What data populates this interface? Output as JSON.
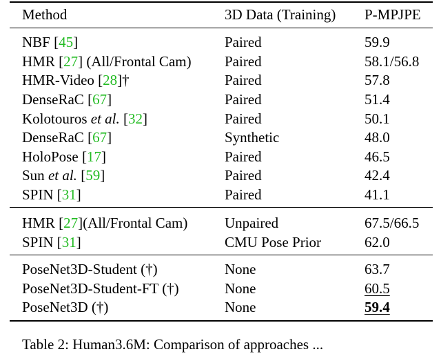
{
  "table": {
    "header": {
      "method": "Method",
      "data": "3D Data (Training)",
      "score": "P-MPJPE"
    },
    "rows": [
      {
        "method": "NBF",
        "cite": "45",
        "suffix": "",
        "data": "Paired",
        "score": "59.9"
      },
      {
        "method": "HMR",
        "cite": "27",
        "suffix": "(All/Frontal Cam)",
        "data": "Paired",
        "score": "58.1/56.8"
      },
      {
        "method": "HMR-Video",
        "cite": "28",
        "suffix": "†",
        "data": "Paired",
        "score": "57.8"
      },
      {
        "method": "DenseRaC",
        "cite": "67",
        "suffix": "",
        "data": "Paired",
        "score": "51.4"
      },
      {
        "method": "Kolotouros",
        "method_em": "et al.",
        "cite": "32",
        "suffix": "",
        "data": "Paired",
        "score": "50.1"
      },
      {
        "method": "DenseRaC",
        "cite": "67",
        "suffix": "",
        "data": "Synthetic",
        "score": "48.0"
      },
      {
        "method": "HoloPose",
        "cite": "17",
        "suffix": "",
        "data": "Paired",
        "score": "46.5"
      },
      {
        "method": "Sun",
        "method_em": "et al.",
        "cite": "59",
        "suffix": "",
        "data": "Paired",
        "score": "42.4"
      },
      {
        "method": "SPIN",
        "cite": "31",
        "suffix": "",
        "data": "Paired",
        "score": "41.1"
      },
      {
        "method": "HMR",
        "cite": "27",
        "suffix": "(All/Frontal Cam)",
        "data": "Unpaired",
        "score": "67.5/66.5"
      },
      {
        "method": "SPIN",
        "cite": "31",
        "suffix": "",
        "data": "CMU Pose Prior",
        "score": "62.0"
      },
      {
        "method": "PoseNet3D-Student (†)",
        "data": "None",
        "score": "63.7"
      },
      {
        "method": "PoseNet3D-Student-FT (†)",
        "data": "None",
        "score": "60.5"
      },
      {
        "method": "PoseNet3D (†)",
        "data": "None",
        "score": "59.4"
      }
    ]
  },
  "caption": {
    "text": "Table 2: Human3.6M: Comparison of approaches ..."
  }
}
